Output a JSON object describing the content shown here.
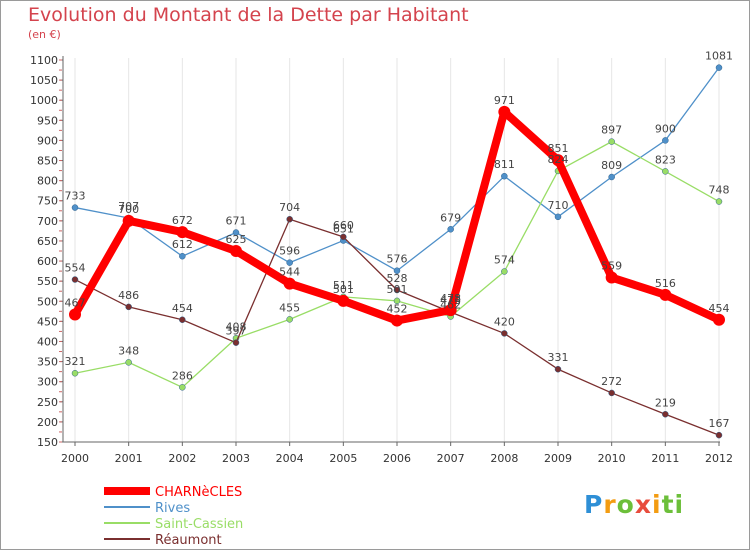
{
  "header": {
    "title": "Evolution du Montant de la Dette par Habitant",
    "subtitle": "(en €)"
  },
  "logo": {
    "letters": [
      "P",
      "r",
      "o",
      "x",
      "i",
      "t",
      "i"
    ],
    "colors": [
      "#2e8fd6",
      "#f39c12",
      "#6cbf3a",
      "#e84c3d",
      "#f39c12",
      "#6cbf3a",
      "#6cbf3a"
    ]
  },
  "chart_data": {
    "type": "line",
    "x": [
      "2000",
      "2001",
      "2002",
      "2003",
      "2004",
      "2005",
      "2006",
      "2007",
      "2008",
      "2009",
      "2010",
      "2011",
      "2012"
    ],
    "yticks": [
      150,
      200,
      250,
      300,
      350,
      400,
      450,
      500,
      550,
      600,
      650,
      700,
      750,
      800,
      850,
      900,
      950,
      1000,
      1050,
      1100
    ],
    "ylim": [
      150,
      1100
    ],
    "grid": "vertical",
    "legend_position": "bottom-left",
    "series": [
      {
        "name": "CHARNèCLES",
        "color": "#ff0000",
        "width": 8,
        "marker": 6,
        "values": [
          467,
          700,
          672,
          625,
          544,
          501,
          452,
          478,
          971,
          851,
          559,
          516,
          454
        ],
        "labels": [
          "467",
          "700",
          "672",
          "625",
          "544",
          "501",
          "452",
          "478",
          "971",
          "851",
          "559",
          "516",
          "454"
        ]
      },
      {
        "name": "Rives",
        "color": "#4f90c9",
        "width": 1.3,
        "marker": 3,
        "values": [
          733,
          707,
          612,
          671,
          596,
          651,
          576,
          679,
          811,
          710,
          809,
          900,
          1081
        ],
        "labels": [
          "733",
          "707",
          "612",
          "671",
          "596",
          "651",
          "576",
          "679",
          "811",
          "710",
          "809",
          "900",
          "1081"
        ]
      },
      {
        "name": "Saint-Cassien",
        "color": "#99dd66",
        "width": 1.3,
        "marker": 3,
        "values": [
          321,
          348,
          286,
          408,
          455,
          511,
          501,
          462,
          574,
          824,
          897,
          823,
          748
        ],
        "labels": [
          "321",
          "348",
          "286",
          "408",
          "455",
          "511",
          "501",
          "462",
          "574",
          "824",
          "897",
          "823",
          "748"
        ]
      },
      {
        "name": "Réaumont",
        "color": "#7a2f2f",
        "width": 1.3,
        "marker": 3,
        "values": [
          554,
          486,
          454,
          397,
          704,
          660,
          528,
          473,
          420,
          331,
          272,
          219,
          167
        ],
        "labels": [
          "554",
          "486",
          "454",
          "397",
          "704",
          "660",
          "528",
          "473",
          "420",
          "331",
          "272",
          "219",
          "167"
        ]
      }
    ]
  }
}
